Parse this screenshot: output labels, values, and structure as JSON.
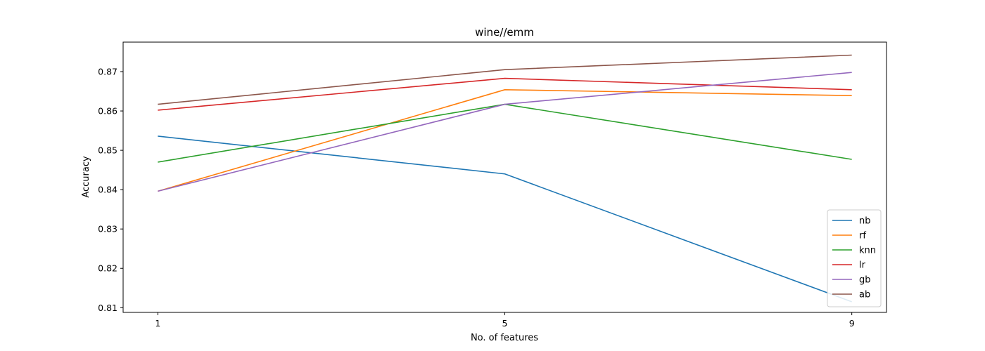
{
  "chart_data": {
    "type": "line",
    "title": "wine//emm",
    "xlabel": "No. of features",
    "ylabel": "Accuracy",
    "x": [
      1,
      5,
      9
    ],
    "xticks": [
      "1",
      "5",
      "9"
    ],
    "xlim": [
      0.6,
      9.4
    ],
    "ylim": [
      0.8088,
      0.8775
    ],
    "yticks": [
      "0.81",
      "0.82",
      "0.83",
      "0.84",
      "0.85",
      "0.86",
      "0.87"
    ],
    "yticks_values": [
      0.81,
      0.82,
      0.83,
      0.84,
      0.85,
      0.86,
      0.87
    ],
    "legend_position": "lower-right",
    "series": [
      {
        "name": "nb",
        "color": "#1f77b4",
        "values": [
          0.8536,
          0.844,
          0.8115
        ]
      },
      {
        "name": "rf",
        "color": "#ff7f0e",
        "values": [
          0.8396,
          0.8654,
          0.8639
        ]
      },
      {
        "name": "knn",
        "color": "#2ca02c",
        "values": [
          0.847,
          0.8617,
          0.8477
        ]
      },
      {
        "name": "lr",
        "color": "#d62728",
        "values": [
          0.8602,
          0.8683,
          0.8654
        ]
      },
      {
        "name": "gb",
        "color": "#9467bd",
        "values": [
          0.8396,
          0.8617,
          0.8698
        ]
      },
      {
        "name": "ab",
        "color": "#8c564b",
        "values": [
          0.8617,
          0.8705,
          0.8742
        ]
      }
    ]
  }
}
